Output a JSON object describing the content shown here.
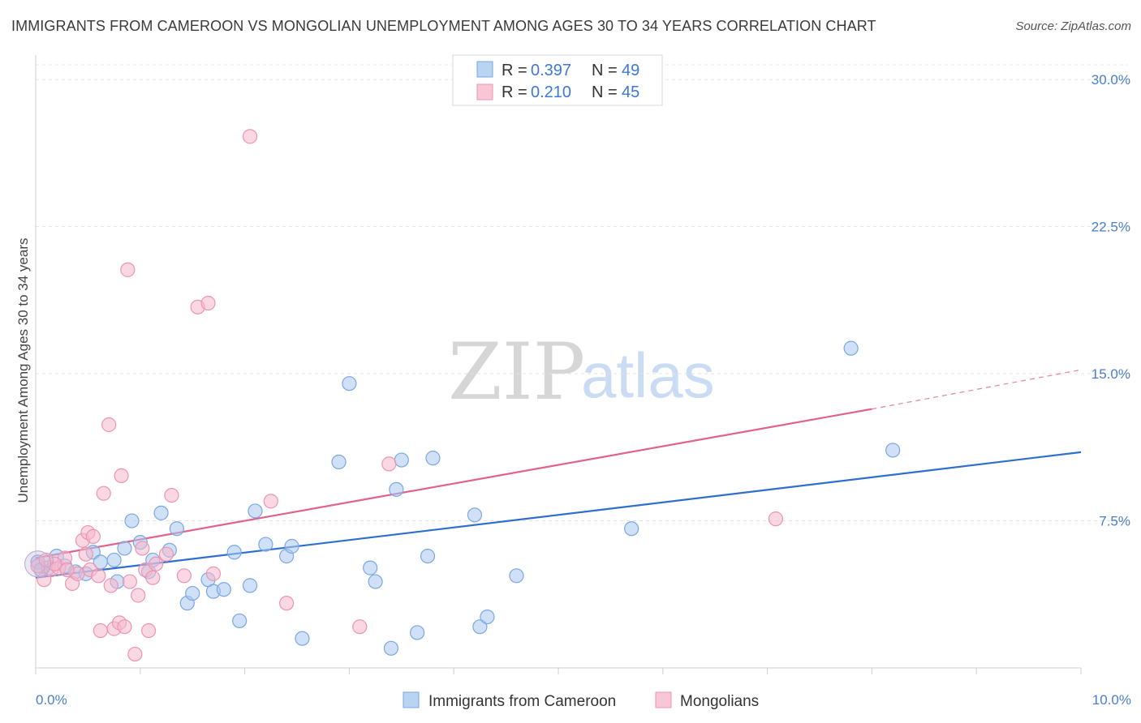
{
  "title": "IMMIGRANTS FROM CAMEROON VS MONGOLIAN UNEMPLOYMENT AMONG AGES 30 TO 34 YEARS CORRELATION CHART",
  "source": "Source: ZipAtlas.com",
  "watermark": {
    "zip": "ZIP",
    "atlas": "atlas"
  },
  "legend_top": [
    {
      "r_label": "R =",
      "r_value": "0.397",
      "n_label": "N =",
      "n_value": "49"
    },
    {
      "r_label": "R =",
      "r_value": "0.210",
      "n_label": "N =",
      "n_value": "45"
    }
  ],
  "chart_data": {
    "type": "scatter",
    "title": "IMMIGRANTS FROM CAMEROON VS MONGOLIAN UNEMPLOYMENT AMONG AGES 30 TO 34 YEARS CORRELATION CHART",
    "xlabel": "",
    "ylabel": "Unemployment Among Ages 30 to 34 years",
    "xlim": [
      0,
      10
    ],
    "ylim": [
      0,
      31
    ],
    "x_tick_labels": [
      {
        "value": 0,
        "label": "0.0%"
      },
      {
        "value": 10,
        "label": "10.0%"
      }
    ],
    "y_tick_labels": [
      {
        "value": 7.5,
        "label": "7.5%"
      },
      {
        "value": 15,
        "label": "15.0%"
      },
      {
        "value": 22.5,
        "label": "22.5%"
      },
      {
        "value": 30,
        "label": "30.0%"
      }
    ],
    "x_minor_ticks": [
      0,
      1,
      2,
      3,
      4,
      5,
      6,
      7,
      8,
      9,
      10
    ],
    "grid": true,
    "legend_placement": "bottom",
    "series": [
      {
        "name": "Immigrants from Cameroon",
        "color": "#a9c8f0",
        "stroke": "#7aa7e0",
        "line_color": "#2f6fcc",
        "trend": {
          "x0": 0,
          "y0": 4.6,
          "x1": 10,
          "y1": 11.0
        },
        "points": [
          [
            0.02,
            5.4
          ],
          [
            0.12,
            5.1
          ],
          [
            0.2,
            5.7
          ],
          [
            0.28,
            5.2
          ],
          [
            0.38,
            4.9
          ],
          [
            0.48,
            4.8
          ],
          [
            0.55,
            5.9
          ],
          [
            0.62,
            5.4
          ],
          [
            0.75,
            5.5
          ],
          [
            0.78,
            4.4
          ],
          [
            0.85,
            6.1
          ],
          [
            0.92,
            7.5
          ],
          [
            1.0,
            6.4
          ],
          [
            1.08,
            4.9
          ],
          [
            1.12,
            5.5
          ],
          [
            1.2,
            7.9
          ],
          [
            1.28,
            6.0
          ],
          [
            1.35,
            7.1
          ],
          [
            1.45,
            3.3
          ],
          [
            1.5,
            3.8
          ],
          [
            1.65,
            4.5
          ],
          [
            1.7,
            3.9
          ],
          [
            1.8,
            4.0
          ],
          [
            1.9,
            5.9
          ],
          [
            1.95,
            2.4
          ],
          [
            2.05,
            4.2
          ],
          [
            2.1,
            8.0
          ],
          [
            2.2,
            6.3
          ],
          [
            2.4,
            5.7
          ],
          [
            2.45,
            6.2
          ],
          [
            2.55,
            1.5
          ],
          [
            2.9,
            10.5
          ],
          [
            3.0,
            14.5
          ],
          [
            3.2,
            5.1
          ],
          [
            3.25,
            4.4
          ],
          [
            3.4,
            1.0
          ],
          [
            3.45,
            9.1
          ],
          [
            3.5,
            10.6
          ],
          [
            3.65,
            1.8
          ],
          [
            3.75,
            5.7
          ],
          [
            3.8,
            10.7
          ],
          [
            4.2,
            7.8
          ],
          [
            4.25,
            2.1
          ],
          [
            4.32,
            2.6
          ],
          [
            4.6,
            4.7
          ],
          [
            5.7,
            7.1
          ],
          [
            7.8,
            16.3
          ],
          [
            8.2,
            11.1
          ],
          [
            0.05,
            5.0
          ]
        ]
      },
      {
        "name": "Mongolians",
        "color": "#f6b8cc",
        "stroke": "#ee94b0",
        "line_color": "#e0628e",
        "trend": {
          "x0": 0,
          "y0": 5.6,
          "x1": 8.0,
          "y1": 13.2
        },
        "trend_dashed": {
          "x0": 8.0,
          "y0": 13.2,
          "x1": 10,
          "y1": 15.2
        },
        "points": [
          [
            0.02,
            5.2
          ],
          [
            0.08,
            4.5
          ],
          [
            0.15,
            5.0
          ],
          [
            0.22,
            5.1
          ],
          [
            0.28,
            5.6
          ],
          [
            0.35,
            4.3
          ],
          [
            0.4,
            4.8
          ],
          [
            0.45,
            6.5
          ],
          [
            0.5,
            6.9
          ],
          [
            0.52,
            5.0
          ],
          [
            0.55,
            6.7
          ],
          [
            0.6,
            4.7
          ],
          [
            0.62,
            1.9
          ],
          [
            0.65,
            8.9
          ],
          [
            0.7,
            12.4
          ],
          [
            0.72,
            4.2
          ],
          [
            0.75,
            2.0
          ],
          [
            0.8,
            2.3
          ],
          [
            0.82,
            9.8
          ],
          [
            0.85,
            2.1
          ],
          [
            0.88,
            20.3
          ],
          [
            0.9,
            4.4
          ],
          [
            0.95,
            0.7
          ],
          [
            0.98,
            3.7
          ],
          [
            1.02,
            6.1
          ],
          [
            1.05,
            5.0
          ],
          [
            1.08,
            1.9
          ],
          [
            1.12,
            4.6
          ],
          [
            1.3,
            8.8
          ],
          [
            1.25,
            5.8
          ],
          [
            1.42,
            4.7
          ],
          [
            1.55,
            18.4
          ],
          [
            1.65,
            18.6
          ],
          [
            1.7,
            4.8
          ],
          [
            2.05,
            27.1
          ],
          [
            2.25,
            8.5
          ],
          [
            2.4,
            3.3
          ],
          [
            3.1,
            2.1
          ],
          [
            3.38,
            10.4
          ],
          [
            7.08,
            7.6
          ],
          [
            0.18,
            5.3
          ],
          [
            0.3,
            5.0
          ],
          [
            1.15,
            5.3
          ],
          [
            0.48,
            5.8
          ],
          [
            0.1,
            5.5
          ]
        ]
      }
    ]
  }
}
